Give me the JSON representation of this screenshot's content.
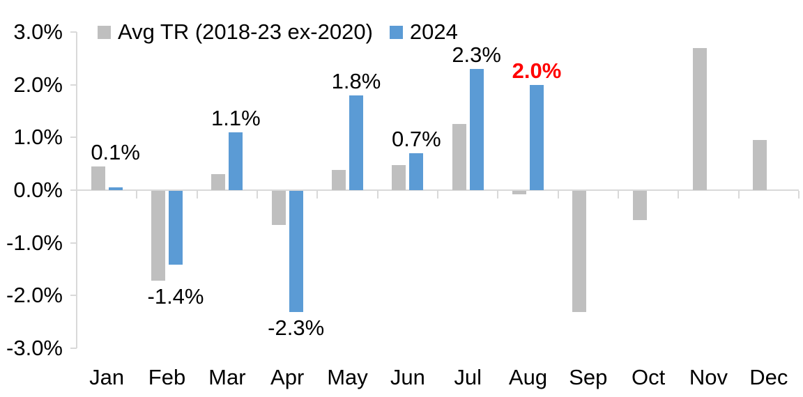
{
  "legend": {
    "items": [
      {
        "label": "Avg TR (2018-23 ex-2020)",
        "color": "#BFBFBF"
      },
      {
        "label": "2024",
        "color": "#5B9BD5"
      }
    ]
  },
  "chart_data": {
    "type": "bar",
    "title": "",
    "xlabel": "",
    "ylabel": "",
    "categories": [
      "Jan",
      "Feb",
      "Mar",
      "Apr",
      "May",
      "Jun",
      "Jul",
      "Aug",
      "Sep",
      "Oct",
      "Nov",
      "Dec"
    ],
    "series": [
      {
        "name": "Avg TR (2018-23 ex-2020)",
        "color": "#BFBFBF",
        "values": [
          0.45,
          -1.7,
          0.3,
          -0.65,
          0.38,
          0.47,
          1.25,
          -0.06,
          -2.3,
          -0.55,
          2.7,
          0.95
        ]
      },
      {
        "name": "2024",
        "color": "#5B9BD5",
        "values": [
          0.05,
          -1.4,
          1.1,
          -2.3,
          1.8,
          0.7,
          2.3,
          2.0,
          null,
          null,
          null,
          null
        ]
      }
    ],
    "data_labels": [
      {
        "category": "Jan",
        "text": "0.1%",
        "color": "#000000",
        "bold": false
      },
      {
        "category": "Feb",
        "text": "-1.4%",
        "color": "#000000",
        "bold": false
      },
      {
        "category": "Mar",
        "text": "1.1%",
        "color": "#000000",
        "bold": false
      },
      {
        "category": "Apr",
        "text": "-2.3%",
        "color": "#000000",
        "bold": false
      },
      {
        "category": "May",
        "text": "1.8%",
        "color": "#000000",
        "bold": false
      },
      {
        "category": "Jun",
        "text": "0.7%",
        "color": "#000000",
        "bold": false
      },
      {
        "category": "Jul",
        "text": "2.3%",
        "color": "#000000",
        "bold": false
      },
      {
        "category": "Aug",
        "text": "2.0%",
        "color": "#FF0000",
        "bold": true
      }
    ],
    "y_ticks": [
      "3.0%",
      "2.0%",
      "1.0%",
      "0.0%",
      "-1.0%",
      "-2.0%",
      "-3.0%"
    ],
    "ylim": [
      -3.0,
      3.0
    ],
    "grid": false,
    "legend_position": "top"
  },
  "colors": {
    "axis_line": "#D9D9D9",
    "gray_series": "#BFBFBF",
    "blue_series": "#5B9BD5",
    "highlight_red": "#FF0000",
    "background": "#FFFFFF",
    "text": "#000000"
  }
}
